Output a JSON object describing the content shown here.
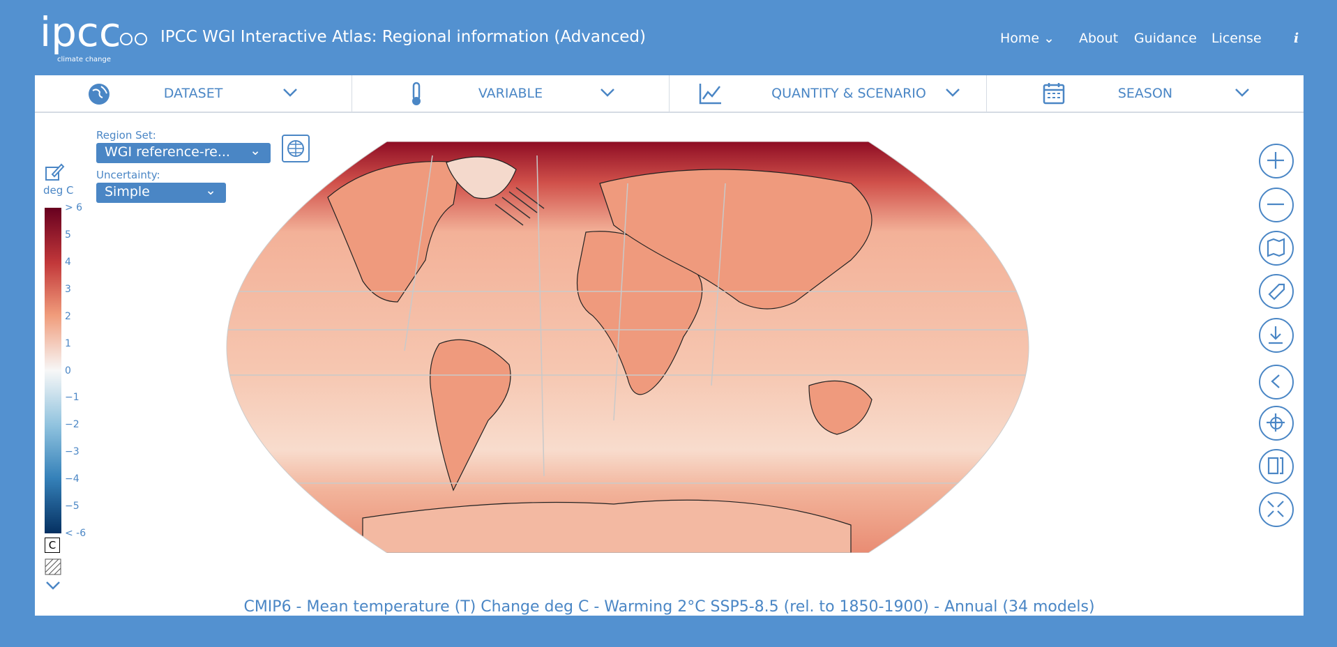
{
  "header": {
    "logo": "ipcc",
    "logo_sub": "climate change",
    "title": "IPCC WGI Interactive Atlas: Regional information (Advanced)",
    "nav": [
      "Home",
      "About",
      "Guidance",
      "License"
    ],
    "info": "i"
  },
  "toolbar": [
    "DATASET",
    "VARIABLE",
    "QUANTITY & SCENARIO",
    "SEASON"
  ],
  "controls": {
    "region_set_label": "Region Set:",
    "region_set_value": "WGI reference-re...",
    "uncertainty_label": "Uncertainty:",
    "uncertainty_value": "Simple"
  },
  "legend": {
    "unit": "deg C",
    "labels": [
      "> 6",
      "5",
      "4",
      "3",
      "2",
      "1",
      "0",
      "−1",
      "−2",
      "−3",
      "−4",
      "−5",
      "< -6"
    ],
    "uncertainty_key": "C"
  },
  "footer": "CMIP6 - Mean temperature (T) Change deg C - Warming 2°C SSP5-8.5 (rel. to 1850-1900) - Annual (34 models)"
}
